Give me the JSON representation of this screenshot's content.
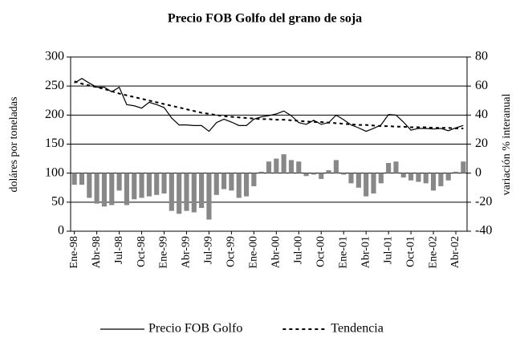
{
  "chart_data": {
    "type": "combo",
    "title": "Precio FOB Golfo del grano de soja",
    "ylabel": "doláres por toneladas",
    "y2label": "variación % interanual",
    "categories": [
      "Ene-98",
      null,
      null,
      "Abr-98",
      null,
      null,
      "Jul-98",
      null,
      null,
      "Oct-98",
      null,
      null,
      "Ene-99",
      null,
      null,
      "Abr-99",
      null,
      null,
      "Jul-99",
      null,
      null,
      "Oct-99",
      null,
      null,
      "Ene-00",
      null,
      null,
      "Abr-00",
      null,
      null,
      "Jul-00",
      null,
      null,
      "Oct-00",
      null,
      null,
      "Ene-01",
      null,
      null,
      "Abr-01",
      null,
      null,
      "Jul-01",
      null,
      null,
      "Oct-01",
      null,
      null,
      "Ene-02",
      null,
      null,
      "Abr-02",
      null
    ],
    "series": [
      {
        "type": "bar",
        "axis": "y2",
        "color": "#888888",
        "values": [
          -8,
          -8,
          -17,
          -21,
          -23,
          -22,
          -12,
          -22,
          -18,
          -17,
          -16,
          -15,
          -14,
          -26,
          -28,
          -26,
          -27,
          -24,
          -32,
          -15,
          -11,
          -12,
          -17,
          -16,
          -9,
          1,
          8,
          10,
          13,
          9,
          8,
          -2,
          -1,
          -4,
          2,
          9,
          -1,
          -7,
          -10,
          -16,
          -14,
          -7,
          7,
          8,
          -3,
          -5,
          -6,
          -7,
          -12,
          -9,
          -5,
          1,
          8
        ]
      },
      {
        "type": "line",
        "axis": "y",
        "name": "Precio FOB Golfo",
        "color": "#000000",
        "dash": "solid",
        "values": [
          255,
          263,
          255,
          248,
          248,
          240,
          248,
          218,
          216,
          212,
          222,
          218,
          213,
          195,
          183,
          183,
          182,
          182,
          172,
          187,
          193,
          188,
          182,
          182,
          193,
          197,
          199,
          202,
          207,
          199,
          187,
          184,
          191,
          184,
          187,
          200,
          192,
          183,
          178,
          172,
          177,
          183,
          201,
          200,
          188,
          174,
          177,
          177,
          176,
          177,
          173,
          178,
          182
        ]
      },
      {
        "type": "line",
        "axis": "y",
        "name": "Tendencia",
        "color": "#000000",
        "dash": "dotted",
        "values": [
          258,
          254,
          251,
          248,
          245,
          241,
          237,
          234,
          231,
          228,
          225,
          222,
          219,
          216,
          213,
          210,
          207,
          204,
          202,
          200,
          198,
          197,
          196,
          195,
          194,
          193,
          193,
          192,
          192,
          191,
          190,
          189,
          188,
          188,
          187,
          186,
          185,
          184,
          183,
          183,
          182,
          181,
          181,
          180,
          180,
          179,
          179,
          179,
          178,
          178,
          178,
          177,
          177
        ]
      }
    ],
    "ylim": [
      0,
      300
    ],
    "yticks": [
      0,
      50,
      100,
      150,
      200,
      250,
      300
    ],
    "y2lim": [
      -40,
      80
    ],
    "y2ticks": [
      -40,
      -20,
      0,
      20,
      40,
      60,
      80
    ],
    "grid": true,
    "legend": "bottom"
  }
}
